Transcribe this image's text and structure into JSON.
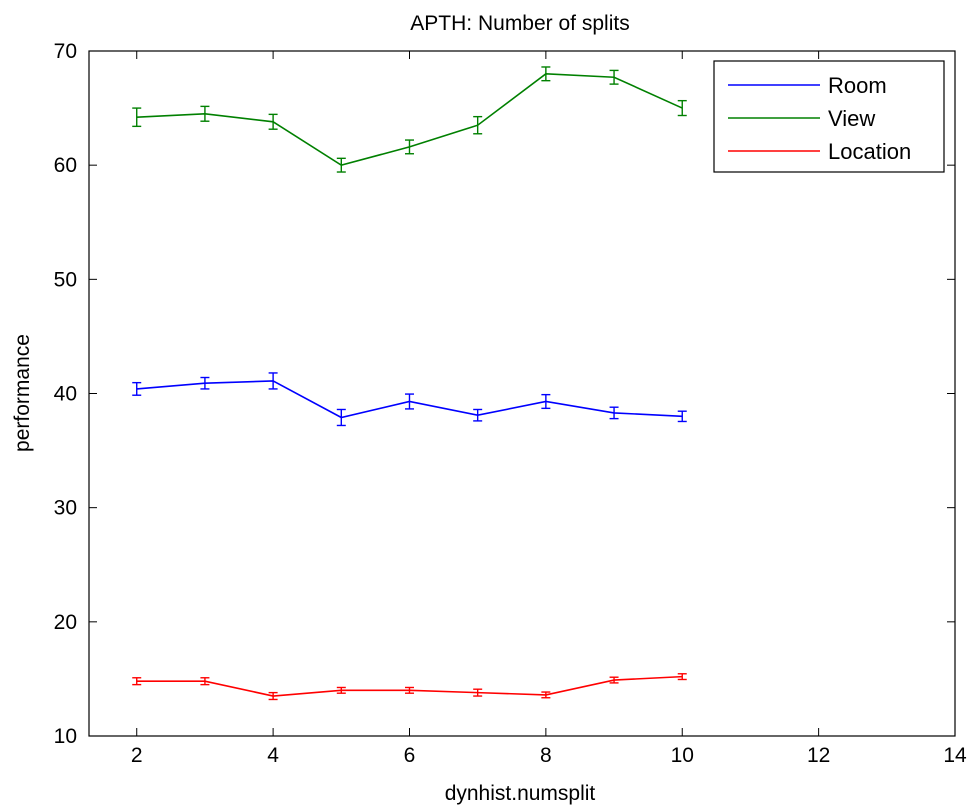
{
  "chart_data": {
    "type": "line",
    "title": "APTH: Number of splits",
    "xlabel": "dynhist.numsplit",
    "ylabel": "performance",
    "xlim": [
      1.3,
      14
    ],
    "ylim": [
      10,
      70
    ],
    "xticks": [
      2,
      4,
      6,
      8,
      10,
      12,
      14
    ],
    "yticks": [
      10,
      20,
      30,
      40,
      50,
      60,
      70
    ],
    "grid": false,
    "legend_position": "top-right",
    "x": [
      2,
      3,
      4,
      5,
      6,
      7,
      8,
      9,
      10
    ],
    "series": [
      {
        "name": "Room",
        "color": "#0000ff",
        "values": [
          40.4,
          40.9,
          41.1,
          37.9,
          39.3,
          38.1,
          39.3,
          38.3,
          38.0
        ],
        "errors": [
          0.55,
          0.5,
          0.7,
          0.7,
          0.65,
          0.5,
          0.6,
          0.5,
          0.45
        ]
      },
      {
        "name": "View",
        "color": "#008000",
        "values": [
          64.2,
          64.5,
          63.8,
          60.0,
          61.6,
          63.5,
          68.0,
          67.7,
          65.0
        ],
        "errors": [
          0.8,
          0.65,
          0.65,
          0.6,
          0.6,
          0.75,
          0.6,
          0.6,
          0.65
        ]
      },
      {
        "name": "Location",
        "color": "#ff0000",
        "values": [
          14.8,
          14.8,
          13.5,
          14.0,
          14.0,
          13.8,
          13.6,
          14.9,
          15.2
        ],
        "errors": [
          0.3,
          0.3,
          0.3,
          0.25,
          0.25,
          0.3,
          0.25,
          0.25,
          0.25
        ]
      }
    ]
  }
}
